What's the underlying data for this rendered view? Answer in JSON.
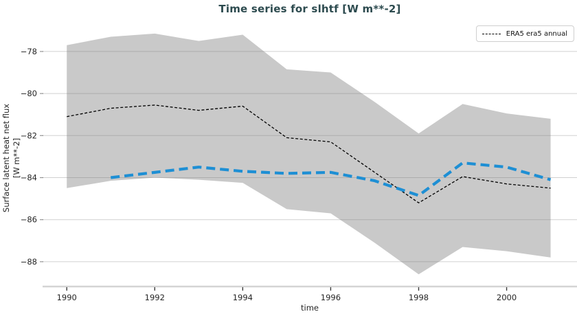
{
  "chart_data": {
    "type": "line",
    "title": "Time series for slhtf [W m**-2]",
    "xlabel": "time",
    "ylabel_lines": [
      "Surface latent heat net flux",
      "[W m**-2]"
    ],
    "x_ticks": [
      1990,
      1992,
      1994,
      1996,
      1998,
      2000
    ],
    "y_ticks": [
      -78,
      -80,
      -82,
      -84,
      -86,
      -88
    ],
    "xlim": [
      1989.45,
      2001.6
    ],
    "ylim": [
      -89.18,
      -76.63
    ],
    "grid": "horizontal-only",
    "legend": {
      "position": "upper-right",
      "entries": [
        {
          "label": "ERA5 era5 annual",
          "style": "dashed",
          "color": "#000000"
        }
      ]
    },
    "band": {
      "name": "uncertainty-band",
      "color": "#c9c9c9",
      "x": [
        1990,
        1991,
        1992,
        1993,
        1994,
        1995,
        1996,
        1997,
        1998,
        1999,
        2000,
        2001
      ],
      "upper": [
        -77.7,
        -77.3,
        -77.15,
        -77.5,
        -77.2,
        -78.85,
        -79.0,
        -80.4,
        -81.9,
        -80.5,
        -80.95,
        -81.2
      ],
      "lower": [
        -84.5,
        -84.15,
        -84.0,
        -84.1,
        -84.25,
        -85.5,
        -85.7,
        -87.1,
        -88.6,
        -87.3,
        -87.5,
        -87.8
      ]
    },
    "series": [
      {
        "name": "ERA5 era5 annual",
        "color": "#000000",
        "line_style": "dashed-thin",
        "x": [
          1990,
          1991,
          1992,
          1993,
          1994,
          1995,
          1996,
          1997,
          1998,
          1999,
          2000,
          2001
        ],
        "values": [
          -81.1,
          -80.7,
          -80.55,
          -80.8,
          -80.6,
          -82.1,
          -82.3,
          -83.75,
          -85.2,
          -83.95,
          -84.3,
          -84.5
        ]
      },
      {
        "name": "",
        "color": "#1e8fd4",
        "line_style": "dashed-thick",
        "x": [
          1991,
          1992,
          1993,
          1994,
          1995,
          1996,
          1997,
          1998,
          1999,
          2000,
          2001
        ],
        "values": [
          -84.0,
          -83.75,
          -83.5,
          -83.7,
          -83.8,
          -83.75,
          -84.15,
          -84.85,
          -83.3,
          -83.5,
          -84.1
        ]
      }
    ],
    "axis_colors": {
      "axis_line": "#d4d4d4",
      "grid_line": "#787878",
      "tick_mark": "#3a3a3a",
      "tick_label": "#262626"
    }
  }
}
